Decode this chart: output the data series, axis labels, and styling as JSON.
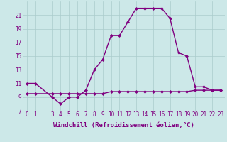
{
  "xlabel": "Windchill (Refroidissement éolien,°C)",
  "x_values": [
    0,
    1,
    3,
    4,
    5,
    6,
    7,
    8,
    9,
    10,
    11,
    12,
    13,
    14,
    15,
    16,
    17,
    18,
    19,
    20,
    21,
    22,
    23
  ],
  "y_line1": [
    11,
    11,
    9,
    8,
    9,
    9,
    10,
    13,
    14.5,
    18,
    18,
    20,
    22,
    22,
    22,
    22,
    20.5,
    15.5,
    15,
    10.5,
    10.5,
    10,
    10
  ],
  "y_line2": [
    9.5,
    9.5,
    9.5,
    9.5,
    9.5,
    9.5,
    9.5,
    9.5,
    9.5,
    9.8,
    9.8,
    9.8,
    9.8,
    9.8,
    9.8,
    9.8,
    9.8,
    9.8,
    9.8,
    10,
    10,
    10,
    10
  ],
  "line_color": "#800080",
  "bg_color": "#cce8e8",
  "grid_color": "#aacccc",
  "ylim": [
    7,
    23
  ],
  "xlim": [
    -0.5,
    23.5
  ],
  "yticks": [
    7,
    9,
    11,
    13,
    15,
    17,
    19,
    21
  ],
  "xticks": [
    0,
    1,
    3,
    4,
    5,
    6,
    7,
    8,
    9,
    10,
    11,
    12,
    13,
    14,
    15,
    16,
    17,
    18,
    19,
    20,
    21,
    22,
    23
  ],
  "tick_fontsize": 5.5,
  "xlabel_fontsize": 6.5,
  "marker": "D",
  "markersize": 2.0,
  "linewidth": 1.0
}
